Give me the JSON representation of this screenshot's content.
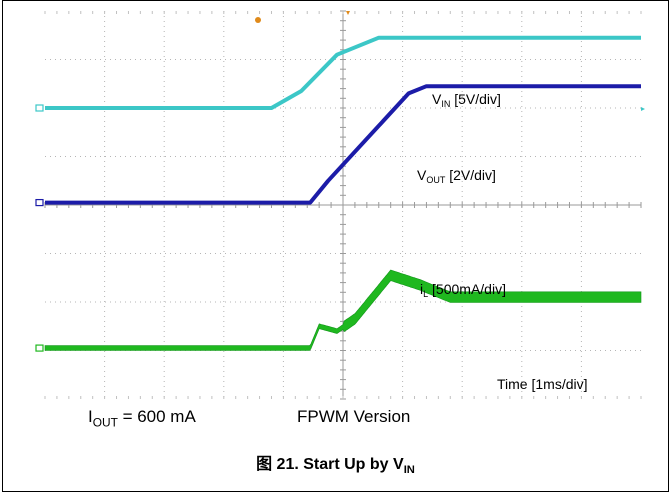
{
  "chart_data": {
    "type": "line",
    "x_axis": {
      "label": "Time [1ms/div]",
      "divisions": 10,
      "range_ms": [
        0,
        10
      ]
    },
    "y_axis": {
      "divisions": 8
    },
    "grid": true,
    "series": [
      {
        "name": "VIN [5V/div]",
        "label_main": "V",
        "label_sub": "IN",
        "label_suffix": " [5V/div]",
        "color": "#3cc7c7",
        "marker_level": 6.0,
        "points": [
          [
            0,
            6.0
          ],
          [
            3.8,
            6.0
          ],
          [
            4.3,
            6.35
          ],
          [
            4.9,
            7.1
          ],
          [
            5.6,
            7.45
          ],
          [
            10,
            7.45
          ]
        ]
      },
      {
        "name": "VOUT [2V/div]",
        "label_main": "V",
        "label_sub": "OUT",
        "label_suffix": " [2V/div]",
        "color": "#1c1ca8",
        "marker_level": 4.05,
        "points": [
          [
            0,
            4.05
          ],
          [
            4.45,
            4.05
          ],
          [
            4.75,
            4.5
          ],
          [
            6.1,
            6.3
          ],
          [
            6.4,
            6.45
          ],
          [
            10,
            6.45
          ]
        ]
      },
      {
        "name": "iL [500mA/div]",
        "label_main": "i",
        "label_sub": "L",
        "label_suffix": " [500mA/div]",
        "color": "#1fb81f",
        "marker_level": 1.05,
        "points": [
          [
            0,
            1.05
          ],
          [
            4.45,
            1.05
          ],
          [
            4.6,
            1.5
          ],
          [
            4.9,
            1.4
          ],
          [
            5.2,
            1.65
          ],
          [
            5.8,
            2.55
          ],
          [
            6.3,
            2.35
          ],
          [
            6.8,
            2.1
          ],
          [
            10,
            2.1
          ]
        ]
      }
    ]
  },
  "annotations": {
    "iout_main": "I",
    "iout_sub": "OUT",
    "iout_value": " = 600 mA",
    "version": "FPWM Version"
  },
  "figure": {
    "number": "图 21. Start Up by V",
    "number_sub": "IN"
  }
}
